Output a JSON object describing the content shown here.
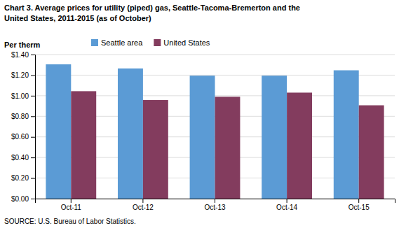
{
  "chart_data": {
    "type": "bar",
    "title": "Chart 3. Average prices for utility (piped) gas, Seattle-Tacoma-Bremerton and the",
    "subtitle": "United States, 2011-2015  (as of October)",
    "ylabel": "Per therm",
    "annotations": [
      "SOURCE: U.S. Bureau of Labor Statistics."
    ],
    "categories": [
      "Oct-11",
      "Oct-12",
      "Oct-13",
      "Oct-14",
      "Oct-15"
    ],
    "series": [
      {
        "name": "Seattle area",
        "values": [
          1.305,
          1.265,
          1.195,
          1.195,
          1.247
        ],
        "color": "#5b9bd5"
      },
      {
        "name": "United States",
        "values": [
          1.044,
          0.958,
          0.99,
          1.03,
          0.907
        ],
        "color": "#833c5e"
      }
    ],
    "ylim": [
      0,
      1.4
    ],
    "yticks": [
      {
        "value": 0.0,
        "label": "$0.00"
      },
      {
        "value": 0.2,
        "label": "$0.20"
      },
      {
        "value": 0.4,
        "label": "$0.40"
      },
      {
        "value": 0.6,
        "label": "$0.60"
      },
      {
        "value": 0.8,
        "label": "$0.80"
      },
      {
        "value": 1.0,
        "label": "$1.00"
      },
      {
        "value": 1.2,
        "label": "$1.20"
      },
      {
        "value": 1.4,
        "label": "$1.40"
      }
    ],
    "grid": true,
    "legend": "upper left"
  }
}
